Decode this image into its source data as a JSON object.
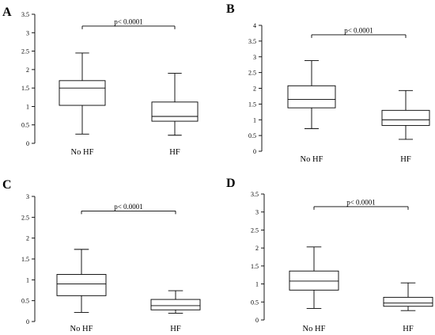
{
  "chart_data": [
    {
      "type": "box",
      "panel": "A",
      "categories": [
        "No HF",
        "HF"
      ],
      "ylim": [
        0,
        3.5
      ],
      "yticks": [
        "0",
        "0.5",
        "1",
        "1.5",
        "2",
        "2.5",
        "3",
        "3.5"
      ],
      "series": [
        {
          "category": "No HF",
          "min": 0.25,
          "q1": 1.03,
          "median": 1.5,
          "q3": 1.7,
          "max": 2.45
        },
        {
          "category": "HF",
          "min": 0.22,
          "q1": 0.6,
          "median": 0.73,
          "q3": 1.12,
          "max": 1.9
        }
      ],
      "annotation": "p< 0.0001",
      "annotation_y": 3.18
    },
    {
      "type": "box",
      "panel": "B",
      "categories": [
        "No HF",
        "HF"
      ],
      "ylim": [
        0,
        4
      ],
      "yticks": [
        "0",
        "0.5",
        "1",
        "1.5",
        "2",
        "2.5",
        "3",
        "3.5",
        "4"
      ],
      "series": [
        {
          "category": "No HF",
          "min": 0.72,
          "q1": 1.38,
          "median": 1.65,
          "q3": 2.08,
          "max": 2.88
        },
        {
          "category": "HF",
          "min": 0.38,
          "q1": 0.82,
          "median": 1.0,
          "q3": 1.3,
          "max": 1.93
        }
      ],
      "annotation": "p< 0.0001",
      "annotation_y": 3.7
    },
    {
      "type": "box",
      "panel": "C",
      "categories": [
        "No HF",
        "HF"
      ],
      "ylim": [
        0,
        3
      ],
      "yticks": [
        "0",
        "0.5",
        "1",
        "1.5",
        "2",
        "2.5",
        "3"
      ],
      "series": [
        {
          "category": "No HF",
          "min": 0.22,
          "q1": 0.62,
          "median": 0.9,
          "q3": 1.13,
          "max": 1.73
        },
        {
          "category": "HF",
          "min": 0.2,
          "q1": 0.28,
          "median": 0.38,
          "q3": 0.53,
          "max": 0.74
        }
      ],
      "annotation": "p< 0.0001",
      "annotation_y": 2.65
    },
    {
      "type": "box",
      "panel": "D",
      "categories": [
        "No HF",
        "HF"
      ],
      "ylim": [
        0,
        3.5
      ],
      "yticks": [
        "0",
        "0.5",
        "1",
        "1.5",
        "2",
        "2.5",
        "3",
        "3.5"
      ],
      "series": [
        {
          "category": "No HF",
          "min": 0.32,
          "q1": 0.83,
          "median": 1.08,
          "q3": 1.36,
          "max": 2.03
        },
        {
          "category": "HF",
          "min": 0.26,
          "q1": 0.38,
          "median": 0.47,
          "q3": 0.63,
          "max": 1.03
        }
      ],
      "annotation": "p< 0.0001",
      "annotation_y": 3.15
    }
  ]
}
